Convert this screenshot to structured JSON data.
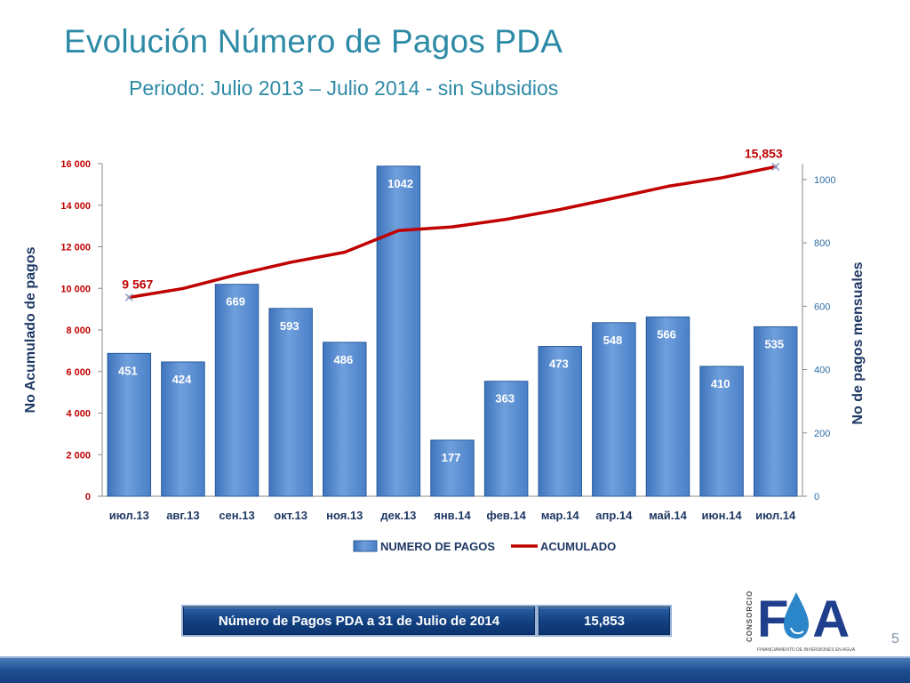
{
  "slide": {
    "title": "Evolución Número de Pagos PDA",
    "subtitle": "Periodo: Julio 2013 – Julio 2014 - sin Subsidios",
    "page_number": "5"
  },
  "summary": {
    "label": "Número de Pagos PDA a 31 de Julio de 2014",
    "value": "15,853"
  },
  "logo": {
    "text": "FA",
    "side_text": "CONSORCIO",
    "tagline": "FINANCIAMIENTO DE INVERSIONES EN AGUA"
  },
  "colors": {
    "title": "#2d8aa6",
    "bar": "#5b8ed0",
    "line": "#c00000",
    "axis_label": "#1f3864",
    "footer": "#1d4f93"
  },
  "chart_data": {
    "type": "bar",
    "categories": [
      "июл.13",
      "авг.13",
      "сен.13",
      "окт.13",
      "ноя.13",
      "дек.13",
      "янв.14",
      "фев.14",
      "мар.14",
      "апр.14",
      "май.14",
      "июн.14",
      "июл.14"
    ],
    "series": [
      {
        "name": "NUMERO DE PAGOS",
        "type": "bar",
        "axis": "right",
        "values": [
          451,
          424,
          669,
          593,
          486,
          1042,
          177,
          363,
          473,
          548,
          566,
          410,
          535
        ]
      },
      {
        "name": "ACUMULADO",
        "type": "line",
        "axis": "left",
        "values": [
          9567,
          9991,
          10660,
          11253,
          11739,
          12781,
          12958,
          13321,
          13794,
          14342,
          14908,
          15318,
          15853
        ]
      }
    ],
    "y_left": {
      "label": "No Acumulado de pagos",
      "range": [
        0,
        16000
      ],
      "ticks": [
        0,
        2000,
        4000,
        6000,
        8000,
        10000,
        12000,
        14000,
        16000
      ],
      "tick_labels": [
        "0",
        "2 000",
        "4 000",
        "6 000",
        "8 000",
        "10 000",
        "12 000",
        "14 000",
        "16 000"
      ]
    },
    "y_right": {
      "label": "No de pagos mensuales",
      "range": [
        0,
        1050
      ],
      "ticks": [
        0,
        200,
        400,
        600,
        800,
        1000
      ],
      "tick_labels": [
        "0",
        "200",
        "400",
        "600",
        "800",
        "1000"
      ]
    },
    "annotations": [
      {
        "series": "ACUMULADO",
        "index": 0,
        "text": "9 567"
      },
      {
        "series": "ACUMULADO",
        "index": 12,
        "text": "15,853"
      }
    ],
    "legend": "bottom",
    "grid": false
  }
}
